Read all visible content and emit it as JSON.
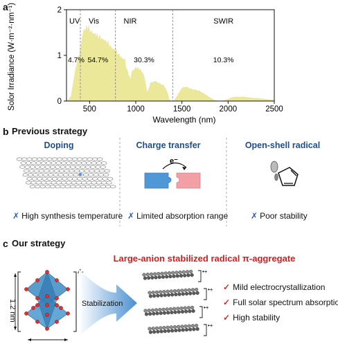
{
  "panel_a": {
    "letter": "a",
    "chart_data": {
      "type": "area",
      "xlabel": "Wavelength (nm)",
      "ylabel": "Solor Irradiance (W·m⁻²·nm⁻¹)",
      "xlim": [
        250,
        2500
      ],
      "ylim": [
        0,
        2
      ],
      "xticks": [
        "500",
        "1000",
        "1500",
        "2000",
        "2500"
      ],
      "yticks": [
        "0",
        "1",
        "2"
      ],
      "region_labels": [
        "UV",
        "Vis",
        "NIR",
        "SWIR"
      ],
      "region_percents": [
        "4.7%",
        "54.7%",
        "30.3%",
        "10.3%"
      ],
      "boundaries_nm": [
        400,
        780,
        1400
      ],
      "fill_color": "#ebe89a",
      "x": [
        250,
        280,
        300,
        320,
        340,
        360,
        380,
        400,
        420,
        440,
        460,
        480,
        500,
        520,
        540,
        560,
        580,
        600,
        640,
        680,
        720,
        760,
        780,
        800,
        840,
        880,
        900,
        920,
        940,
        960,
        1000,
        1040,
        1080,
        1100,
        1120,
        1140,
        1160,
        1200,
        1250,
        1300,
        1340,
        1360,
        1380,
        1400,
        1420,
        1460,
        1500,
        1550,
        1600,
        1650,
        1700,
        1750,
        1800,
        1850,
        1900,
        1950,
        2000,
        2050,
        2100,
        2150,
        2200,
        2250,
        2300,
        2350,
        2400,
        2450,
        2500
      ],
      "y": [
        0.0,
        0.05,
        0.1,
        0.35,
        0.6,
        0.8,
        0.95,
        1.1,
        1.4,
        1.55,
        1.58,
        1.6,
        1.55,
        1.5,
        1.48,
        1.45,
        1.42,
        1.4,
        1.35,
        1.3,
        1.2,
        1.12,
        1.1,
        1.05,
        0.95,
        0.9,
        0.7,
        0.6,
        0.45,
        0.65,
        0.72,
        0.7,
        0.6,
        0.45,
        0.2,
        0.25,
        0.4,
        0.42,
        0.4,
        0.35,
        0.2,
        0.05,
        0.0,
        0.0,
        0.02,
        0.15,
        0.28,
        0.3,
        0.27,
        0.24,
        0.2,
        0.15,
        0.08,
        0.02,
        0.0,
        0.01,
        0.04,
        0.08,
        0.09,
        0.09,
        0.08,
        0.07,
        0.06,
        0.05,
        0.04,
        0.03,
        0.02
      ]
    }
  },
  "panel_b": {
    "letter": "b",
    "title": "Previous strategy",
    "columns": [
      {
        "title": "Doping",
        "issue": "High synthesis temperature"
      },
      {
        "title": "Charge transfer",
        "issue": "Limited absorption range",
        "electron": "e⁻"
      },
      {
        "title": "Open-shell radical",
        "issue": "Poor stability"
      }
    ],
    "issue_mark": "✗"
  },
  "panel_c": {
    "letter": "c",
    "title": "Our strategy",
    "headline": "Large-anion stabilized radical π-aggregate",
    "anion_charge": "4-",
    "dimension": "1.2 nm",
    "arrow_label": "Stabilization",
    "radical_charge": "•+",
    "advantages": [
      "Mild electrocrystallization",
      "Full solar spectrum absorption",
      "High stability"
    ],
    "check_mark": "✓"
  },
  "colors": {
    "blue_title": "#1f4e8c",
    "red_title": "#cc1f1f",
    "piece_blue": "#4f98d8",
    "piece_red": "#f2a0a5",
    "polyhedra": "#3c8cc4",
    "oxygen": "#e03030"
  }
}
